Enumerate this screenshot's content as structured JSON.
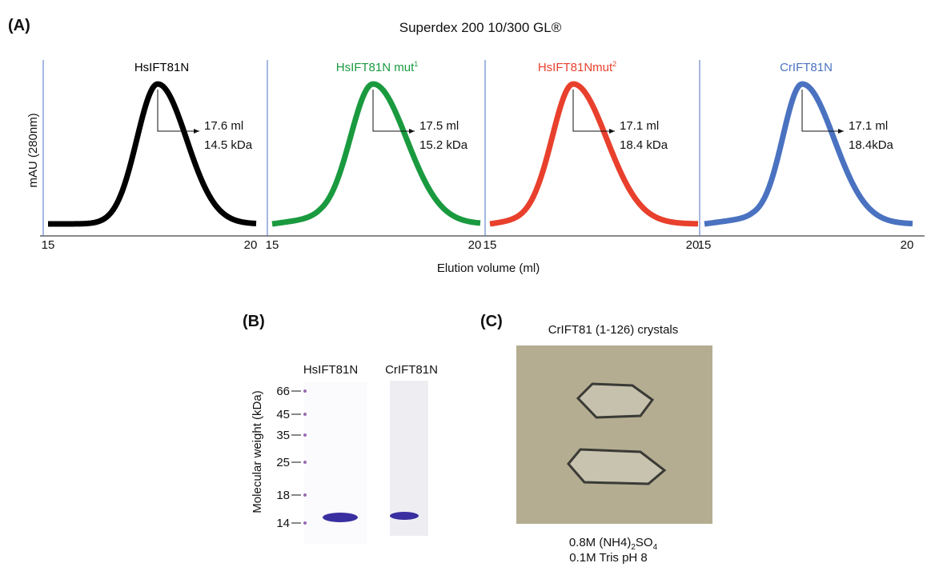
{
  "panel_a": {
    "label": "(A)",
    "title": "Superdex 200 10/300 GL®",
    "y_label": "mAU (280nm)",
    "x_label": "Elution volume (ml)",
    "charts": [
      {
        "name": "HsIFT81N",
        "name_sup": null,
        "color": "#000000",
        "xlim": [
          15,
          20
        ],
        "xticks": [
          15,
          20
        ],
        "annotation": [
          "17.6 ml",
          "14.5 kDa"
        ]
      },
      {
        "name": "HsIFT81N mut",
        "name_sup": "1",
        "color": "#1a9a3f",
        "xlim": [
          15,
          20
        ],
        "xticks": [
          15,
          20
        ],
        "annotation": [
          "17.5 ml",
          "15.2 kDa"
        ]
      },
      {
        "name": "HsIFT81Nmut",
        "name_sup": "2",
        "color": "#e8402c",
        "xlim": [
          15,
          20
        ],
        "xticks": [
          15,
          20
        ],
        "annotation": [
          "17.1 ml",
          "18.4 kDa"
        ]
      },
      {
        "name": "CrIFT81N",
        "name_sup": null,
        "color": "#4a72c0",
        "xlim": [
          15,
          20
        ],
        "xticks": [
          15,
          20
        ],
        "annotation": [
          "17.1 ml",
          "18.4kDa"
        ]
      }
    ]
  },
  "panel_b": {
    "label": "(B)",
    "lanes": [
      "HsIFT81N",
      "CrIFT81N"
    ],
    "y_label": "Molecular weight (kDa)",
    "markers": [
      66,
      45,
      35,
      25,
      18,
      14
    ]
  },
  "panel_c": {
    "label": "(C)",
    "title": "CrIFT81 (1-126) crystals",
    "caption_line1": [
      "0.8M (NH4)",
      "2",
      "SO",
      "4"
    ],
    "caption_line2": "0.1M Tris pH 8"
  }
}
